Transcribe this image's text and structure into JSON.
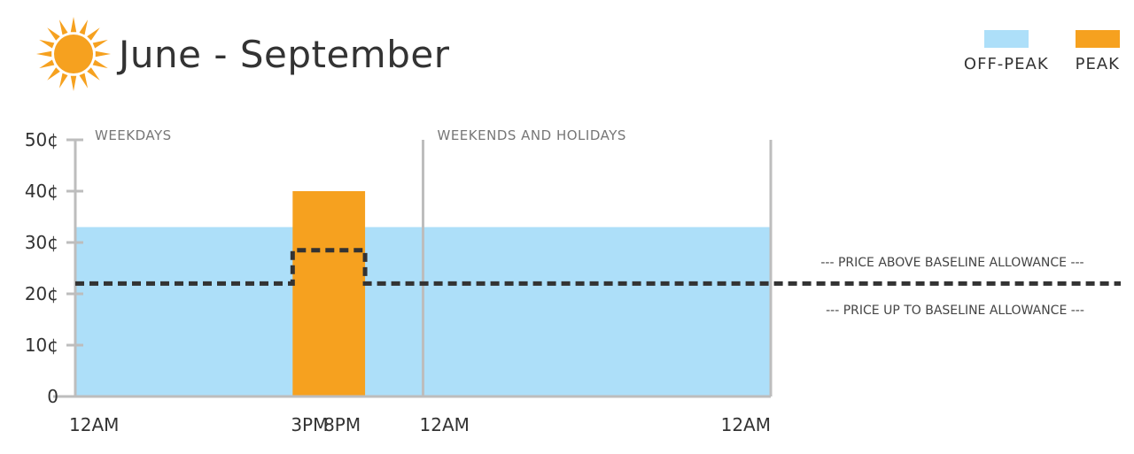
{
  "title": "June - September",
  "icons": {
    "sun": "sun-icon"
  },
  "colors": {
    "offpeak": "#ADDFF9",
    "peak": "#F6A11F",
    "axis": "#BDBDBD",
    "text": "#333333",
    "baseline": "#333333"
  },
  "legend": [
    {
      "label": "OFF-PEAK",
      "color": "#ADDFF9"
    },
    {
      "label": "PEAK",
      "color": "#F6A11F"
    }
  ],
  "chart_data": {
    "type": "bar",
    "title": "June - September",
    "y_unit": "cents",
    "ylim": [
      0,
      50
    ],
    "y_ticks": [
      {
        "value": 0,
        "label": "0"
      },
      {
        "value": 10,
        "label": "10¢"
      },
      {
        "value": 20,
        "label": "20¢"
      },
      {
        "value": 30,
        "label": "30¢"
      },
      {
        "value": 40,
        "label": "40¢"
      },
      {
        "value": 50,
        "label": "50¢"
      }
    ],
    "sections": [
      {
        "name": "WEEKDAYS",
        "start_hour": 0,
        "end_hour": 24
      },
      {
        "name": "WEEKENDS AND HOLIDAYS",
        "start_hour": 24,
        "end_hour": 48
      }
    ],
    "x_ticks": [
      {
        "hour": 0,
        "label": "12AM"
      },
      {
        "hour": 15,
        "label": "3PM"
      },
      {
        "hour": 20,
        "label": "8PM"
      },
      {
        "hour": 24,
        "label": "12AM"
      },
      {
        "hour": 48,
        "label": "12AM"
      }
    ],
    "series": [
      {
        "name": "OFF-PEAK",
        "segments": [
          {
            "start_hour": 0,
            "end_hour": 48,
            "price": 33
          }
        ]
      },
      {
        "name": "PEAK",
        "segments": [
          {
            "start_hour": 15,
            "end_hour": 20,
            "price": 40
          }
        ]
      }
    ],
    "baseline": {
      "segments": [
        {
          "start_hour": 0,
          "end_hour": 15,
          "price": 22
        },
        {
          "start_hour": 15,
          "end_hour": 20,
          "price": 28.5
        },
        {
          "start_hour": 20,
          "end_hour": 48,
          "price": 22
        }
      ]
    },
    "annotations": [
      "--- PRICE ABOVE BASELINE ALLOWANCE ---",
      "--- PRICE UP TO BASELINE ALLOWANCE ---"
    ]
  }
}
